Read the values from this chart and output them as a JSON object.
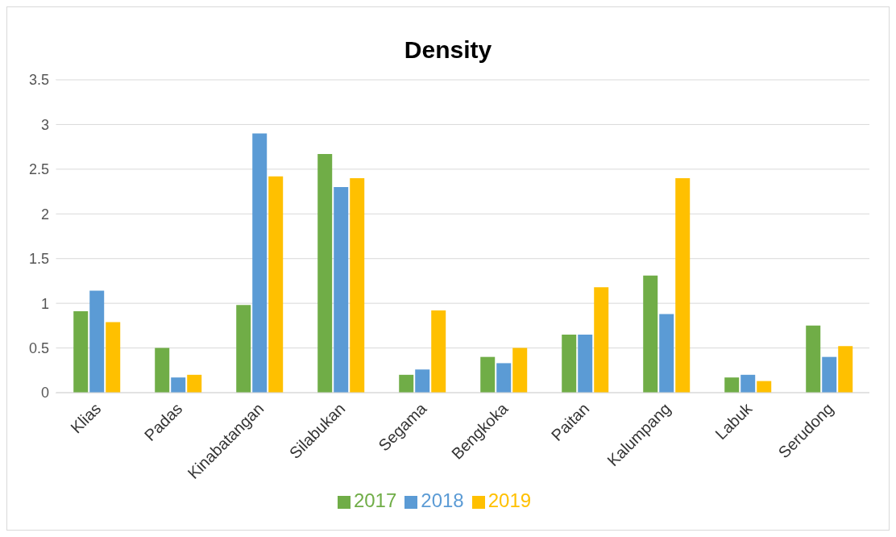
{
  "chart_data": {
    "type": "bar",
    "title": "Density",
    "categories": [
      "Klias",
      "Padas",
      "Kinabatangan",
      "Silabukan",
      "Segama",
      "Bengkoka",
      "Paitan",
      "Kalumpang",
      "Labuk",
      "Serudong"
    ],
    "series": [
      {
        "name": "2017",
        "color": "#70ad47",
        "values": [
          0.91,
          0.5,
          0.98,
          2.67,
          0.2,
          0.4,
          0.65,
          1.31,
          0.17,
          0.75
        ]
      },
      {
        "name": "2018",
        "color": "#5b9bd5",
        "values": [
          1.14,
          0.17,
          2.9,
          2.3,
          0.26,
          0.33,
          0.65,
          0.88,
          0.2,
          0.4
        ]
      },
      {
        "name": "2019",
        "color": "#ffc000",
        "values": [
          0.79,
          0.2,
          2.42,
          2.4,
          0.92,
          0.5,
          1.18,
          2.4,
          0.13,
          0.52
        ]
      }
    ],
    "ylim": [
      0,
      3.5
    ],
    "yticks": [
      0,
      0.5,
      1,
      1.5,
      2,
      2.5,
      3,
      3.5
    ],
    "grid": "y",
    "legend": "bottom"
  }
}
